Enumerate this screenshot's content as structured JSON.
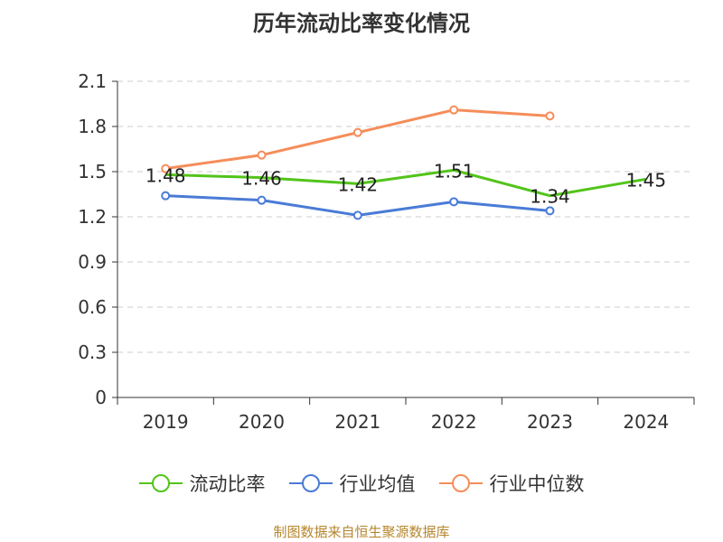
{
  "chart_data": {
    "type": "line",
    "title": "历年流动比率变化情况",
    "categories": [
      "2019",
      "2020",
      "2021",
      "2022",
      "2023",
      "2024"
    ],
    "ylim": [
      0,
      2.1
    ],
    "yticks": [
      "0",
      "0.3",
      "0.6",
      "0.9",
      "1.2",
      "1.5",
      "1.8",
      "2.1"
    ],
    "yticks_values": [
      0,
      0.3,
      0.6,
      0.9,
      1.2,
      1.5,
      1.8,
      2.1
    ],
    "grid": true,
    "legend_position": "bottom",
    "series": [
      {
        "name": "流动比率",
        "color": "#52c41a",
        "values": [
          1.48,
          1.46,
          1.42,
          1.51,
          1.34,
          1.45
        ],
        "labels": [
          "1.48",
          "1.46",
          "1.42",
          "1.51",
          "1.34",
          "1.45"
        ],
        "show_markers": false,
        "show_labels": true
      },
      {
        "name": "行业均值",
        "color": "#4a7bd6",
        "values": [
          1.34,
          1.31,
          1.21,
          1.3,
          1.24,
          null
        ],
        "show_markers": true,
        "show_labels": false
      },
      {
        "name": "行业中位数",
        "color": "#f58d5a",
        "values": [
          1.52,
          1.61,
          1.76,
          1.91,
          1.87,
          null
        ],
        "show_markers": true,
        "show_labels": false
      }
    ]
  },
  "source_text": "制图数据来自恒生聚源数据库"
}
